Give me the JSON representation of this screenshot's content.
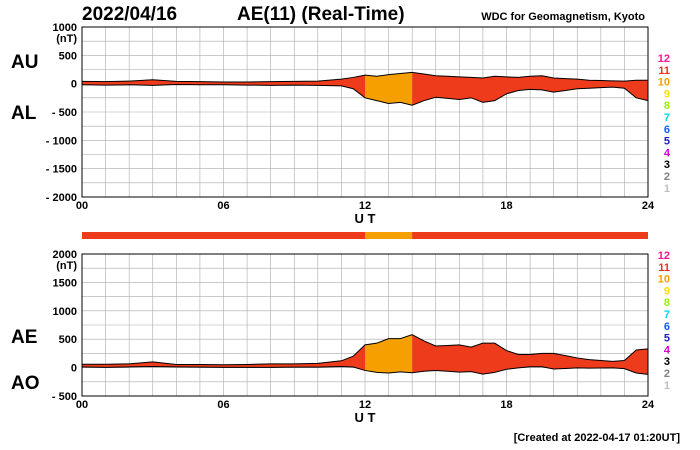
{
  "header": {
    "date": "2022/04/16",
    "title": "AE(11) (Real-Time)",
    "source": "WDC for Geomagnetism, Kyoto"
  },
  "footer": {
    "created": "[Created at 2022-04-17 01:20UT]"
  },
  "legend": {
    "items": [
      {
        "label": "12",
        "color": "#ff1493"
      },
      {
        "label": "11",
        "color": "#e8341c"
      },
      {
        "label": "10",
        "color": "#f5a000"
      },
      {
        "label": "9",
        "color": "#ffe000"
      },
      {
        "label": "8",
        "color": "#9cf000"
      },
      {
        "label": "7",
        "color": "#00d8e8"
      },
      {
        "label": "6",
        "color": "#1060ff"
      },
      {
        "label": "5",
        "color": "#2020c0"
      },
      {
        "label": "4",
        "color": "#d000d0"
      },
      {
        "label": "3",
        "color": "#000000"
      },
      {
        "label": "2",
        "color": "#808080"
      },
      {
        "label": "1",
        "color": "#c0c0c0"
      }
    ]
  },
  "colors": {
    "fill_main": "#ee3b1c",
    "fill_alt": "#f5a000",
    "line": "#000000",
    "grid": "#aaaaaa"
  },
  "chart_data": [
    {
      "type": "area",
      "series_labels": [
        "AU",
        "AL"
      ],
      "ylabel": "(nT)",
      "xlabel": "U T",
      "x_ticks": [
        "00",
        "06",
        "12",
        "18",
        "24"
      ],
      "y_ticks": [
        "1000",
        "500",
        "0",
        "- 500",
        "- 1000",
        "- 1500",
        "- 2000"
      ],
      "xlim": [
        0,
        24
      ],
      "ylim": [
        -2000,
        1000
      ],
      "grid": true,
      "station_hours_10": [
        [
          12.0,
          14.0
        ]
      ],
      "x": [
        0,
        1,
        2,
        3,
        4,
        5,
        6,
        7,
        8,
        9,
        10,
        11,
        11.5,
        12,
        12.5,
        13,
        13.5,
        14,
        14.5,
        15,
        15.5,
        16,
        16.5,
        17,
        17.5,
        18,
        18.5,
        19,
        19.5,
        20,
        20.5,
        21,
        21.5,
        22,
        22.5,
        23,
        23.5,
        24
      ],
      "upper": [
        40,
        35,
        45,
        70,
        40,
        35,
        30,
        30,
        35,
        40,
        45,
        80,
        110,
        150,
        130,
        160,
        180,
        200,
        170,
        140,
        130,
        120,
        110,
        100,
        130,
        120,
        110,
        130,
        140,
        100,
        90,
        80,
        60,
        55,
        50,
        45,
        60,
        60
      ],
      "lower": [
        -20,
        -25,
        -20,
        -30,
        -15,
        -20,
        -20,
        -25,
        -30,
        -25,
        -30,
        -40,
        -90,
        -250,
        -300,
        -350,
        -330,
        -380,
        -300,
        -240,
        -260,
        -280,
        -250,
        -330,
        -300,
        -180,
        -120,
        -100,
        -110,
        -150,
        -120,
        -90,
        -80,
        -70,
        -60,
        -80,
        -250,
        -300
      ]
    },
    {
      "type": "area",
      "series_labels": [
        "AE",
        "AO"
      ],
      "ylabel": "(nT)",
      "xlabel": "U T",
      "x_ticks": [
        "00",
        "06",
        "12",
        "18",
        "24"
      ],
      "y_ticks": [
        "2000",
        "1500",
        "1000",
        "500",
        "0",
        "- 500"
      ],
      "xlim": [
        0,
        24
      ],
      "ylim": [
        -500,
        2000
      ],
      "grid": true,
      "station_hours_10": [
        [
          12.0,
          14.0
        ]
      ],
      "x": [
        0,
        1,
        2,
        3,
        4,
        5,
        6,
        7,
        8,
        9,
        10,
        11,
        11.5,
        12,
        12.5,
        13,
        13.5,
        14,
        14.5,
        15,
        15.5,
        16,
        16.5,
        17,
        17.5,
        18,
        18.5,
        19,
        19.5,
        20,
        20.5,
        21,
        21.5,
        22,
        22.5,
        23,
        23.5,
        24
      ],
      "upper": [
        60,
        60,
        65,
        100,
        55,
        55,
        50,
        55,
        65,
        65,
        75,
        120,
        200,
        400,
        430,
        510,
        510,
        580,
        470,
        380,
        390,
        400,
        360,
        430,
        430,
        300,
        230,
        230,
        250,
        250,
        210,
        170,
        140,
        125,
        110,
        125,
        310,
        330
      ],
      "lower": [
        10,
        5,
        12,
        20,
        12,
        8,
        5,
        3,
        3,
        8,
        8,
        20,
        10,
        -50,
        -85,
        -95,
        -75,
        -90,
        -65,
        -50,
        -65,
        -80,
        -70,
        -115,
        -85,
        -30,
        -5,
        15,
        15,
        -25,
        -15,
        -5,
        -10,
        -8,
        -5,
        -18,
        -95,
        -120
      ]
    }
  ]
}
